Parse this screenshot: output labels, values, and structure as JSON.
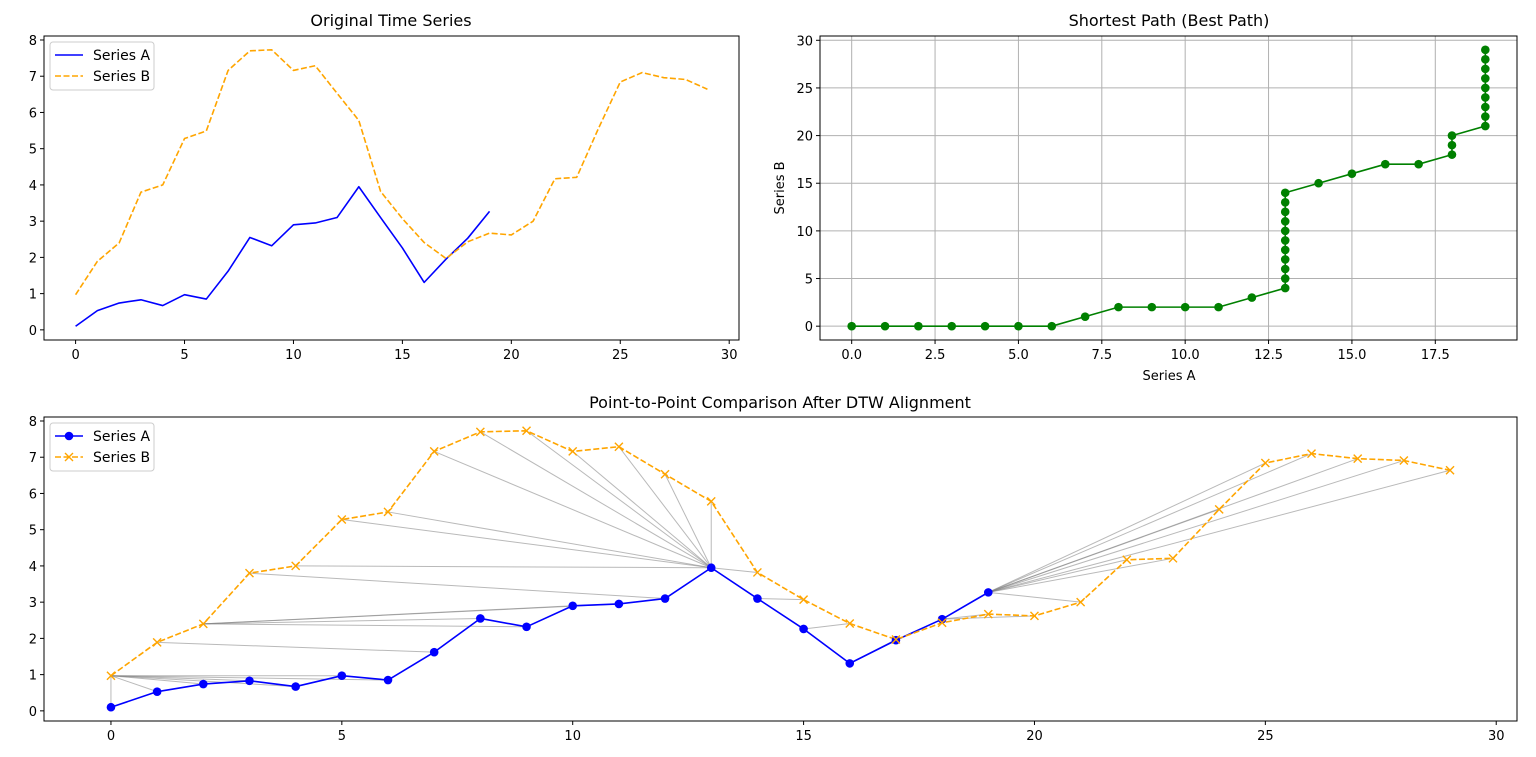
{
  "chart_data": [
    {
      "type": "line",
      "title": "Original Time Series",
      "xlabel": "",
      "ylabel": "",
      "xlim": [
        -1.45,
        30.45
      ],
      "ylim": [
        -0.28,
        8.11
      ],
      "xticks": [
        0,
        5,
        10,
        15,
        20,
        25,
        30
      ],
      "yticks": [
        0,
        1,
        2,
        3,
        4,
        5,
        6,
        7,
        8
      ],
      "grid": false,
      "legend": "upper-left",
      "series": [
        {
          "name": "Series A",
          "color": "#0000ff",
          "style": "solid",
          "marker": "none",
          "x": [
            0,
            1,
            2,
            3,
            4,
            5,
            6,
            7,
            8,
            9,
            10,
            11,
            12,
            13,
            14,
            15,
            16,
            17,
            18,
            19
          ],
          "values": [
            0.1,
            0.53,
            0.74,
            0.83,
            0.67,
            0.97,
            0.85,
            1.62,
            2.55,
            2.32,
            2.9,
            2.95,
            3.1,
            3.95,
            3.1,
            2.26,
            1.31,
            1.95,
            2.53,
            3.27
          ]
        },
        {
          "name": "Series B",
          "color": "#ffa500",
          "style": "dashed",
          "marker": "none",
          "x": [
            0,
            1,
            2,
            3,
            4,
            5,
            6,
            7,
            8,
            9,
            10,
            11,
            12,
            13,
            14,
            15,
            16,
            17,
            18,
            19,
            20,
            21,
            22,
            23,
            24,
            25,
            26,
            27,
            28,
            29
          ],
          "values": [
            0.97,
            1.89,
            2.4,
            3.8,
            4.0,
            5.28,
            5.49,
            7.16,
            7.7,
            7.73,
            7.16,
            7.29,
            6.53,
            5.78,
            3.82,
            3.07,
            2.41,
            1.97,
            2.43,
            2.67,
            2.62,
            3.0,
            4.17,
            4.21,
            5.56,
            6.84,
            7.1,
            6.96,
            6.91,
            6.64
          ]
        }
      ]
    },
    {
      "type": "line",
      "title": "Shortest Path (Best Path)",
      "xlabel": "Series A",
      "ylabel": "Series B",
      "xlim": [
        -0.95,
        19.95
      ],
      "ylim": [
        -1.45,
        30.45
      ],
      "xticks": [
        0.0,
        2.5,
        5.0,
        7.5,
        10.0,
        12.5,
        15.0,
        17.5
      ],
      "xtick_labels": [
        "0.0",
        "2.5",
        "5.0",
        "7.5",
        "10.0",
        "12.5",
        "15.0",
        "17.5"
      ],
      "yticks": [
        0,
        5,
        10,
        15,
        20,
        25,
        30
      ],
      "grid": true,
      "series": [
        {
          "color": "#008000",
          "style": "solid",
          "marker": "circle",
          "x": [
            0,
            1,
            2,
            3,
            4,
            5,
            6,
            7,
            8,
            9,
            10,
            11,
            12,
            13,
            13,
            13,
            13,
            13,
            13,
            13,
            13,
            13,
            13,
            13,
            14,
            15,
            16,
            17,
            18,
            18,
            18,
            19,
            19,
            19,
            19,
            19,
            19,
            19,
            19,
            19
          ],
          "values": [
            0,
            0,
            0,
            0,
            0,
            0,
            0,
            1,
            2,
            2,
            2,
            2,
            3,
            4,
            5,
            6,
            7,
            8,
            9,
            10,
            11,
            12,
            13,
            14,
            15,
            16,
            17,
            17,
            18,
            19,
            20,
            21,
            22,
            23,
            24,
            25,
            26,
            27,
            28,
            29
          ]
        }
      ]
    },
    {
      "type": "line",
      "title": "Point-to-Point Comparison After DTW Alignment",
      "xlabel": "",
      "ylabel": "",
      "xlim": [
        -1.45,
        30.45
      ],
      "ylim": [
        -0.28,
        8.11
      ],
      "xticks": [
        0,
        5,
        10,
        15,
        20,
        25,
        30
      ],
      "yticks": [
        0,
        1,
        2,
        3,
        4,
        5,
        6,
        7,
        8
      ],
      "grid": false,
      "legend": "upper-left",
      "connector_color": "#808080",
      "path_a_index": [
        0,
        1,
        2,
        3,
        4,
        5,
        6,
        7,
        8,
        9,
        10,
        11,
        12,
        13,
        13,
        13,
        13,
        13,
        13,
        13,
        13,
        13,
        13,
        13,
        14,
        15,
        16,
        17,
        18,
        18,
        18,
        19,
        19,
        19,
        19,
        19,
        19,
        19,
        19,
        19
      ],
      "path_b_index": [
        0,
        0,
        0,
        0,
        0,
        0,
        0,
        1,
        2,
        2,
        2,
        2,
        3,
        4,
        5,
        6,
        7,
        8,
        9,
        10,
        11,
        12,
        13,
        14,
        15,
        16,
        17,
        17,
        18,
        19,
        20,
        21,
        22,
        23,
        24,
        25,
        26,
        27,
        28,
        29
      ],
      "series": [
        {
          "name": "Series A",
          "color": "#0000ff",
          "style": "solid",
          "marker": "circle"
        },
        {
          "name": "Series B",
          "color": "#ffa500",
          "style": "dashed",
          "marker": "x"
        }
      ]
    }
  ]
}
